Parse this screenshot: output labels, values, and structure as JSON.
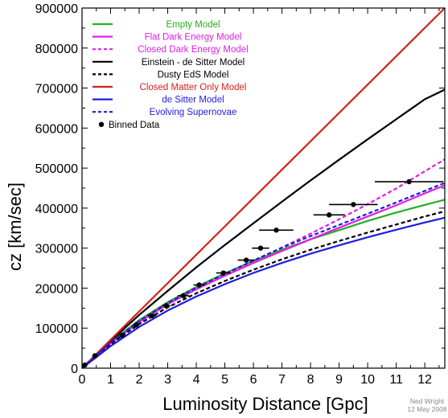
{
  "chart_data": {
    "type": "line",
    "xlabel": "Luminosity Distance [Gpc]",
    "ylabel": "cz [km/sec]",
    "xlim": [
      0,
      12.7
    ],
    "ylim": [
      0,
      900000
    ],
    "x_ticks": [
      0,
      1,
      2,
      3,
      4,
      5,
      6,
      7,
      8,
      9,
      10,
      11,
      12
    ],
    "x_tick_labels": [
      "0",
      "1",
      "2",
      "3",
      "4",
      "5",
      "6",
      "7",
      "8",
      "9",
      "10",
      "11",
      "12"
    ],
    "y_ticks": [
      0,
      100000,
      200000,
      300000,
      400000,
      500000,
      600000,
      700000,
      800000,
      900000
    ],
    "y_tick_labels": [
      "0",
      "100000",
      "200000",
      "300000",
      "400000",
      "500000",
      "600000",
      "700000",
      "800000",
      "900000"
    ],
    "legend_position": "top-left",
    "series": [
      {
        "name": "Empty Model",
        "color": "#22b022",
        "dash": "solid",
        "x": [
          0,
          1,
          2,
          3,
          4,
          5,
          6,
          7,
          8,
          9,
          10,
          11,
          12,
          12.7
        ],
        "y": [
          0,
          65000,
          120000,
          165000,
          203000,
          237000,
          268000,
          296000,
          322000,
          345000,
          368000,
          389000,
          408000,
          421000
        ]
      },
      {
        "name": "Flat Dark Energy Model",
        "color": "#e020e0",
        "dash": "solid",
        "x": [
          0,
          1,
          2,
          3,
          4,
          5,
          6,
          7,
          8,
          9,
          10,
          11,
          12,
          12.7
        ],
        "y": [
          0,
          62000,
          115000,
          160000,
          197000,
          231000,
          263000,
          293000,
          322000,
          351000,
          379000,
          407000,
          437000,
          457000
        ]
      },
      {
        "name": "Closed Dark Energy Model",
        "color": "#e020e0",
        "dash": "dashed",
        "x": [
          0,
          1,
          2,
          3,
          4,
          5,
          6,
          7,
          8,
          9,
          10,
          11,
          12,
          12.7
        ],
        "y": [
          0,
          62000,
          115000,
          160000,
          198000,
          234000,
          268000,
          302000,
          336000,
          372000,
          410000,
          449000,
          492000,
          522000
        ]
      },
      {
        "name": "Einstein - de Sitter Model",
        "color": "#000000",
        "dash": "solid",
        "x": [
          0,
          1,
          2,
          3,
          4,
          5,
          6,
          7,
          8,
          9,
          10,
          11,
          12,
          12.7
        ],
        "y": [
          0,
          68000,
          133000,
          193000,
          252000,
          308000,
          362000,
          416000,
          469000,
          521000,
          572000,
          622000,
          672000,
          696000
        ]
      },
      {
        "name": "Dusty EdS Model",
        "color": "#000000",
        "dash": "dashed",
        "x": [
          0,
          1,
          2,
          3,
          4,
          5,
          6,
          7,
          8,
          9,
          10,
          11,
          12,
          12.7
        ],
        "y": [
          0,
          60000,
          110000,
          152000,
          187000,
          218000,
          246000,
          272000,
          296000,
          318000,
          339000,
          359000,
          379000,
          392000
        ]
      },
      {
        "name": "Closed Matter Only Model",
        "color": "#d42020",
        "dash": "solid",
        "x": [
          0,
          12.7
        ],
        "y": [
          0,
          900000
        ]
      },
      {
        "name": "de Sitter Model",
        "color": "#1c1ce0",
        "dash": "solid",
        "x": [
          0,
          1,
          2,
          3,
          4,
          5,
          6,
          7,
          8,
          9,
          10,
          11,
          12,
          12.7
        ],
        "y": [
          0,
          55000,
          103000,
          144000,
          179000,
          210000,
          238000,
          263000,
          286000,
          307000,
          327000,
          346000,
          364000,
          376000
        ]
      },
      {
        "name": "Evolving Supernovae",
        "color": "#1c1ce0",
        "dash": "dashed",
        "x": [
          0,
          1,
          2,
          3,
          4,
          5,
          6,
          7,
          8,
          9,
          10,
          11,
          12,
          12.7
        ],
        "y": [
          0,
          64000,
          118000,
          163000,
          201000,
          236000,
          269000,
          301000,
          330000,
          358000,
          386000,
          414000,
          443000,
          463000
        ]
      }
    ],
    "points": {
      "name": "Binned Data",
      "color": "#000000",
      "data": [
        {
          "x": 0.1,
          "y": 8000,
          "xerr": 0.05
        },
        {
          "x": 0.45,
          "y": 31000,
          "xerr": 0.08
        },
        {
          "x": 1.4,
          "y": 82000,
          "xerr": 0.1
        },
        {
          "x": 1.9,
          "y": 108000,
          "xerr": 0.1
        },
        {
          "x": 2.45,
          "y": 131000,
          "xerr": 0.15
        },
        {
          "x": 2.95,
          "y": 156000,
          "xerr": 0.15
        },
        {
          "x": 3.55,
          "y": 181000,
          "xerr": 0.2
        },
        {
          "x": 4.1,
          "y": 208000,
          "xerr": 0.2
        },
        {
          "x": 4.95,
          "y": 238000,
          "xerr": 0.25
        },
        {
          "x": 5.75,
          "y": 270000,
          "xerr": 0.3
        },
        {
          "x": 6.25,
          "y": 300000,
          "xerr": 0.3
        },
        {
          "x": 6.8,
          "y": 345000,
          "xerr": 0.6
        },
        {
          "x": 8.65,
          "y": 383000,
          "xerr": 0.55
        },
        {
          "x": 9.5,
          "y": 409000,
          "xerr": 0.85
        },
        {
          "x": 11.45,
          "y": 466000,
          "xerr": 1.2
        }
      ]
    }
  },
  "credit": {
    "author": "Ned Wright",
    "date": "12 May 2008"
  }
}
